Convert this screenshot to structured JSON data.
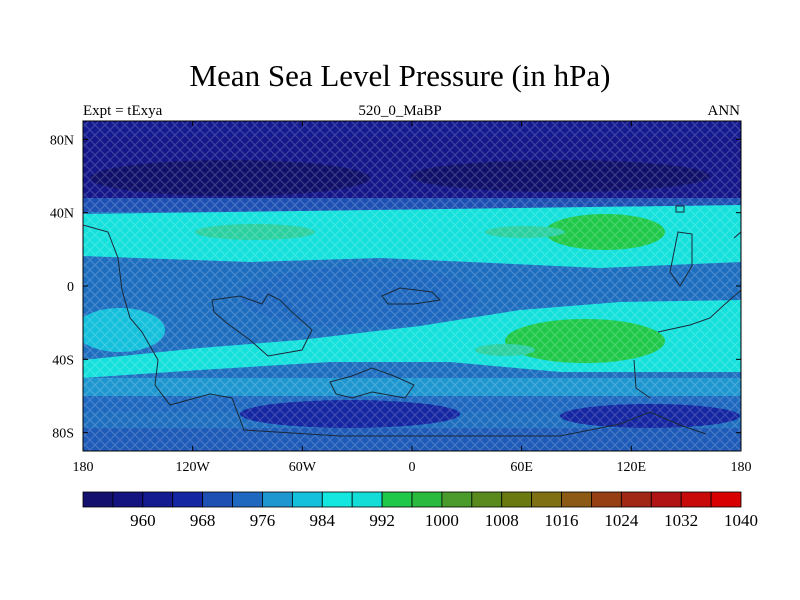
{
  "title": "Mean Sea Level Pressure (in hPa)",
  "subtitle_left": "Expt = tExya",
  "subtitle_center": "520_0_MaBP",
  "subtitle_right": "ANN",
  "map": {
    "type": "filled-contour-map",
    "projection": "cylindrical-equidistant",
    "lon_range": [
      -180,
      180
    ],
    "lat_range": [
      -90,
      90
    ],
    "lon_tick_labels": [
      "180",
      "120W",
      "60W",
      "0",
      "60E",
      "120E",
      "180"
    ],
    "lat_tick_labels": [
      "80N",
      "40N",
      "0",
      "40S",
      "80S"
    ],
    "coastlines": true,
    "pattern": "crosshatch"
  },
  "colorbar": {
    "levels": [
      "960",
      "968",
      "976",
      "984",
      "992",
      "1000",
      "1008",
      "1016",
      "1024",
      "1032",
      "1040"
    ],
    "colors": [
      "#14106e",
      "#141480",
      "#141a90",
      "#1426a2",
      "#1e50b4",
      "#1e68c0",
      "#1e96d0",
      "#14c0dc",
      "#14e6e0",
      "#14dcd6",
      "#20c84a",
      "#2aba3e",
      "#4a9a2c",
      "#5a8a1e",
      "#6a7a10",
      "#807014",
      "#8c5a14",
      "#963e14",
      "#a02814",
      "#b01414",
      "#c80a0a",
      "#d80000"
    ]
  },
  "colors": {
    "ocean_main": "#1e6ec0",
    "high_lat": "#14168a",
    "cyan": "#16e4dc",
    "green": "#20c84a"
  }
}
